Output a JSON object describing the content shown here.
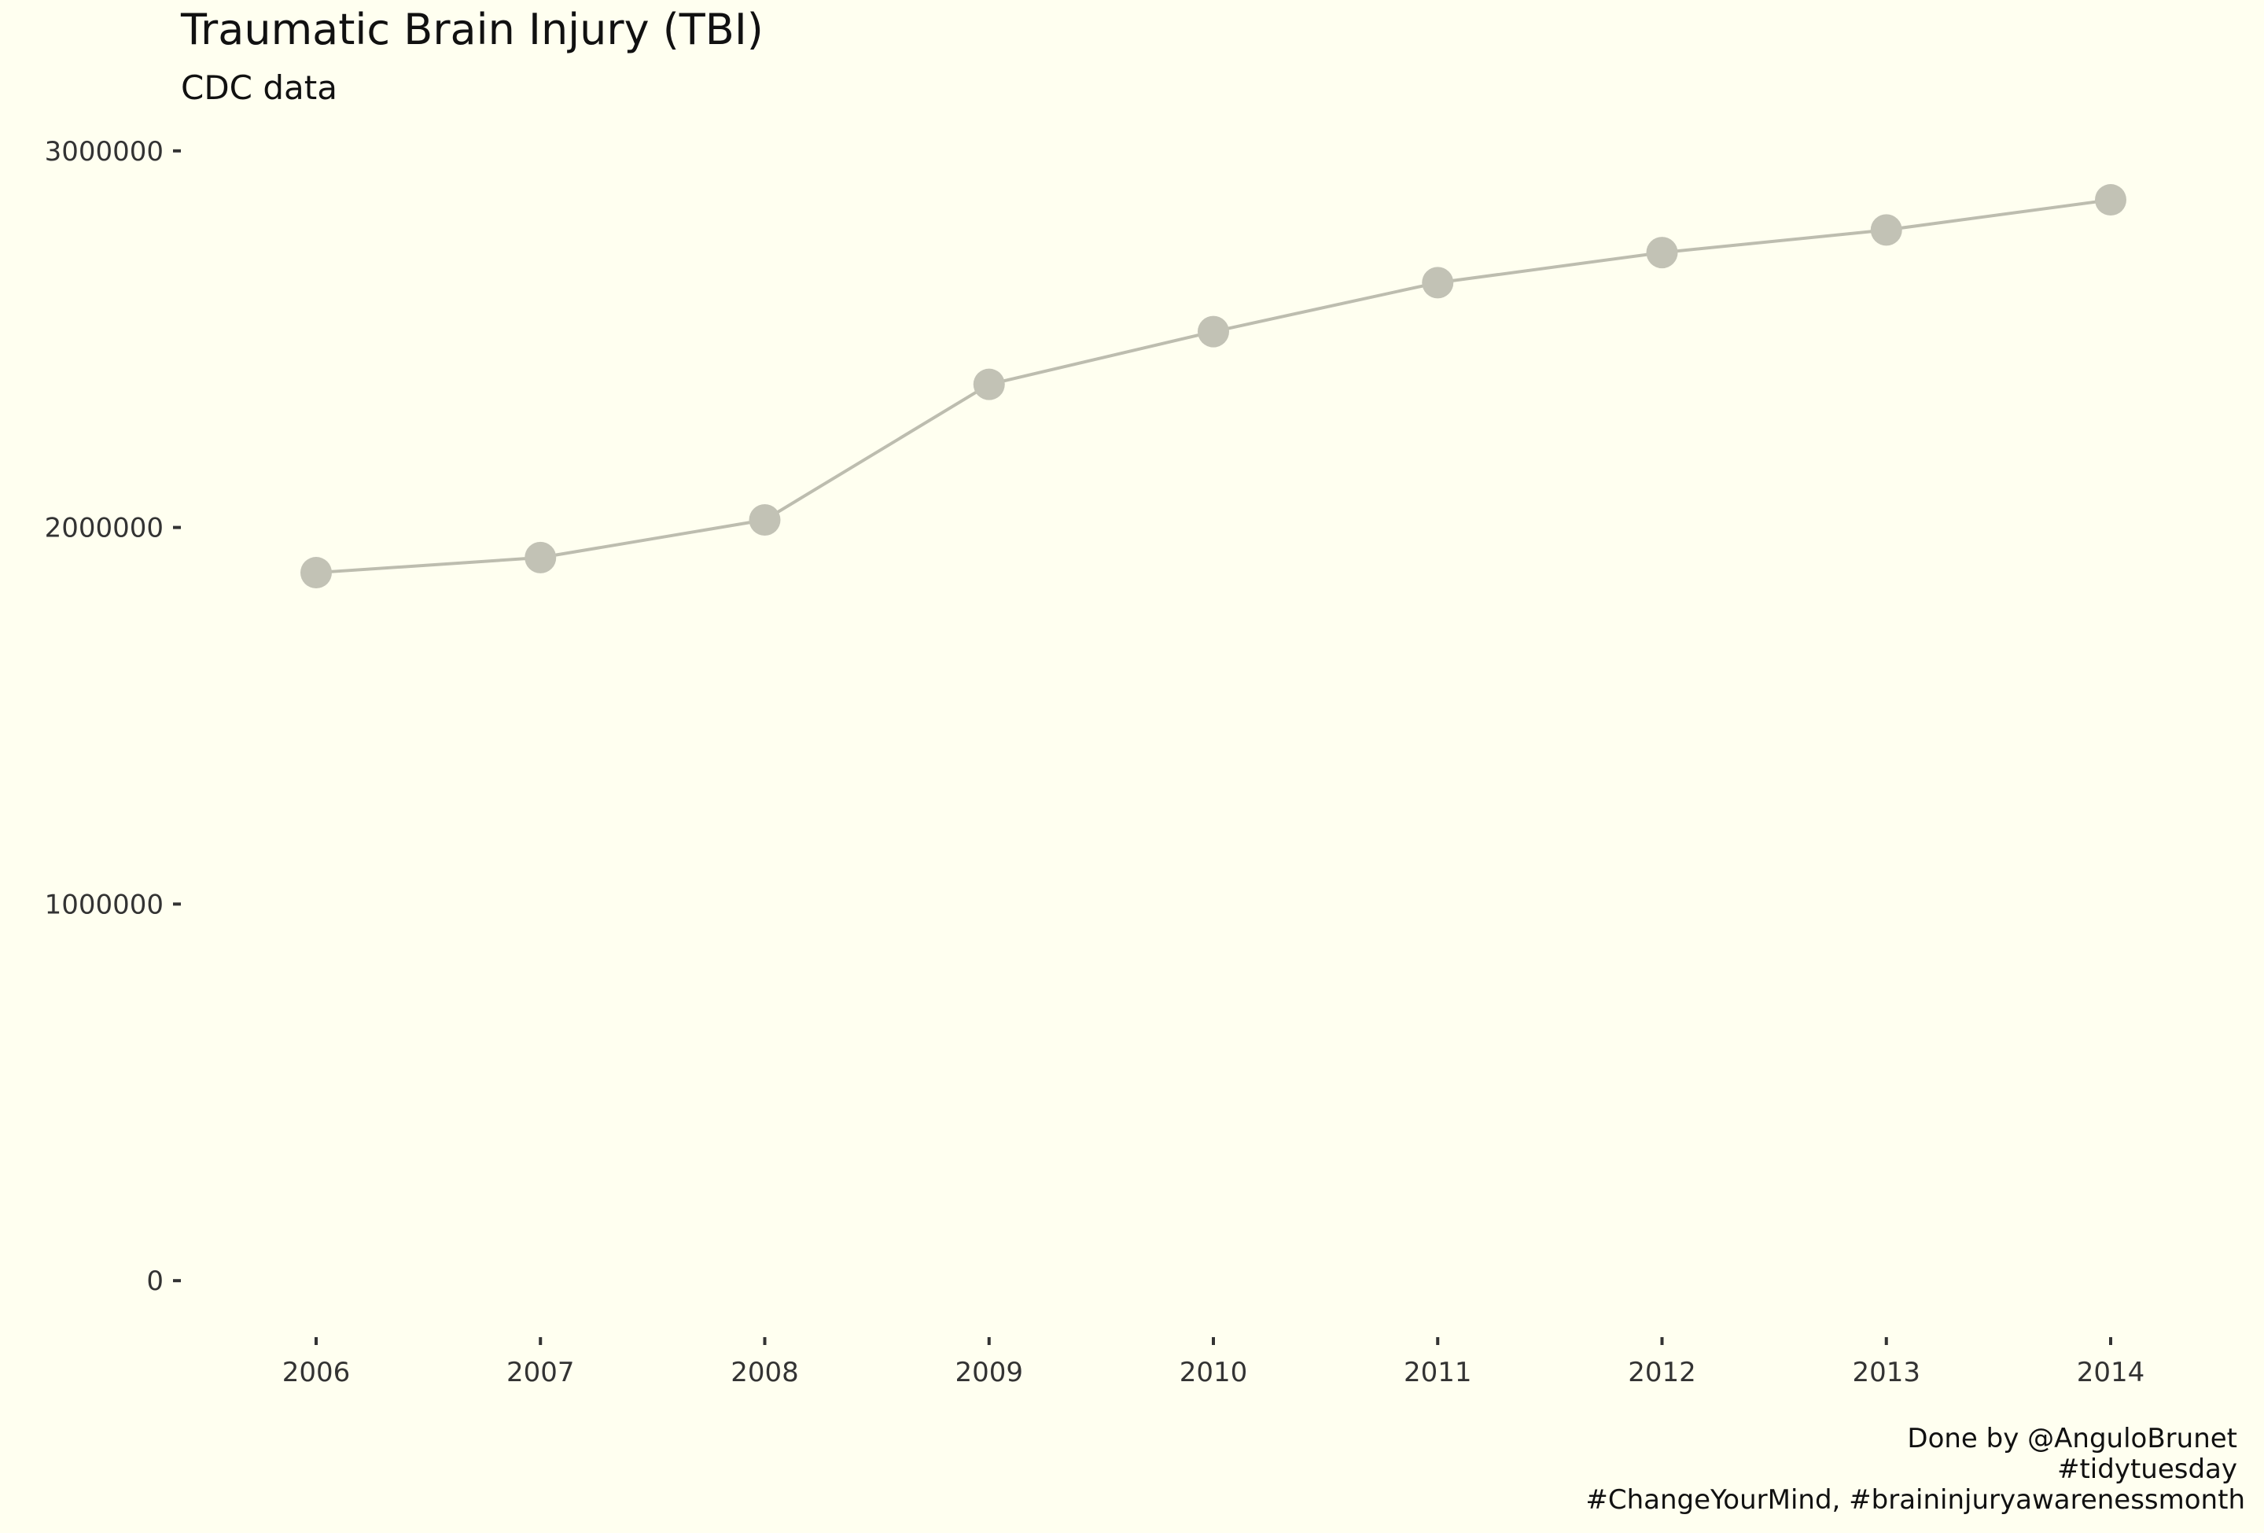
{
  "chart_data": {
    "type": "line",
    "title": "Traumatic Brain Injury (TBI)",
    "subtitle": "CDC data",
    "xlabel": "",
    "ylabel": "",
    "x": [
      "2006",
      "2007",
      "2008",
      "2009",
      "2010",
      "2011",
      "2012",
      "2013",
      "2014"
    ],
    "series": [
      {
        "values": [
          1880000,
          1920000,
          2020000,
          2380000,
          2520000,
          2650000,
          2730000,
          2790000,
          2870000
        ],
        "color": "#bdbdaf"
      }
    ],
    "ylim": [
      -150000,
      3150000
    ],
    "yticks": [
      0,
      1000000,
      2000000,
      3000000
    ],
    "ytick_labels": [
      "0",
      "1000000",
      "2000000",
      "3000000"
    ],
    "grid": false,
    "legend": "none",
    "caption": [
      "Done by @AnguloBrunet",
      "#tidytuesday",
      "#ChangeYourMind, #braininjuryawarenessmonth"
    ],
    "colors": {
      "background": "#fffff0",
      "line": "#bdbdaf",
      "point": "#c2c2b5",
      "text": "#111111",
      "tick_text": "#333333"
    }
  }
}
